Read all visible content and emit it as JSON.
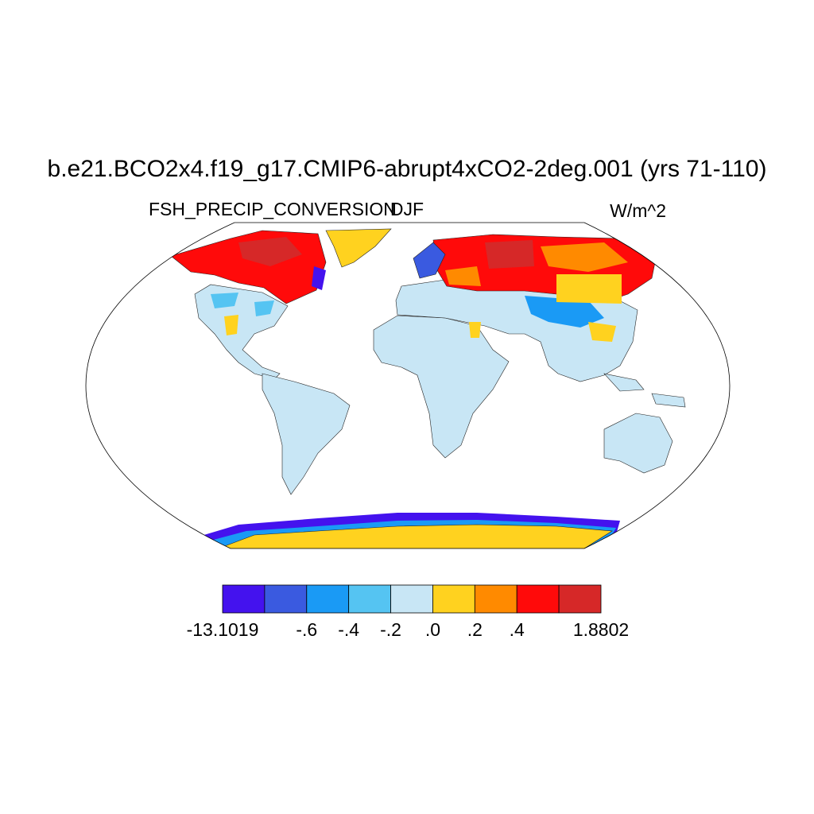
{
  "title": "b.e21.BCO2x4.f19_g17.CMIP6-abrupt4xCO2-2deg.001 (yrs 71-110)",
  "left_string": "FSH_PRECIP_CONVERSION",
  "center_string": "DJF",
  "right_string": "W/m^2",
  "colorbar": {
    "colors": [
      "#4412ee",
      "#3a5ae0",
      "#1a9af5",
      "#55c4f2",
      "#c8e6f5",
      "#ffd21f",
      "#ff8a00",
      "#ff0a0a",
      "#d62828"
    ],
    "ticks": [
      -13.1019,
      null,
      {
        "value": -0.6,
        "label": "-.6"
      },
      {
        "value": -0.4,
        "label": "-.4"
      },
      {
        "value": -0.2,
        "label": "-.2"
      },
      {
        "value": 0,
        "label": ".0"
      },
      {
        "value": 0.2,
        "label": ".2"
      },
      {
        "value": 0.4,
        "label": ".4"
      },
      null,
      1.8802
    ]
  }
}
